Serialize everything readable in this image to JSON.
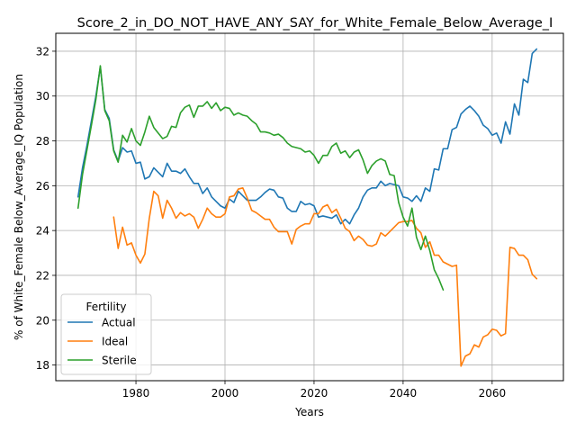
{
  "chart_data": {
    "type": "line",
    "title": "Score_2_in_DO_NOT_HAVE_ANY_SAY_for_White_Female_Below_Average_I",
    "xlabel": "Years",
    "ylabel": "% of White_Female Below_Average_IQ Population",
    "xlim": [
      1962,
      2076
    ],
    "ylim": [
      17.3,
      32.8
    ],
    "xticks": [
      1980,
      2000,
      2020,
      2040,
      2060
    ],
    "yticks": [
      18,
      20,
      22,
      24,
      26,
      28,
      30,
      32
    ],
    "grid": true,
    "legend": {
      "title": "Fertility",
      "placement": "lower-left"
    },
    "series": [
      {
        "name": "Actual",
        "color": "#1f77b4",
        "points": [
          [
            1967,
            25.5
          ],
          [
            1968,
            26.8
          ],
          [
            1969,
            27.8
          ],
          [
            1970,
            28.9
          ],
          [
            1971,
            30.0
          ],
          [
            1972,
            31.3
          ],
          [
            1973,
            29.4
          ],
          [
            1974,
            29.0
          ],
          [
            1975,
            27.6
          ],
          [
            1976,
            27.1
          ],
          [
            1977,
            27.7
          ],
          [
            1978,
            27.5
          ],
          [
            1979,
            27.55
          ],
          [
            1980,
            27.0
          ],
          [
            1981,
            27.05
          ],
          [
            1982,
            26.3
          ],
          [
            1983,
            26.4
          ],
          [
            1984,
            26.8
          ],
          [
            1985,
            26.6
          ],
          [
            1986,
            26.4
          ],
          [
            1987,
            27.0
          ],
          [
            1988,
            26.65
          ],
          [
            1989,
            26.65
          ],
          [
            1990,
            26.55
          ],
          [
            1991,
            26.75
          ],
          [
            1992,
            26.4
          ],
          [
            1993,
            26.1
          ],
          [
            1994,
            26.1
          ],
          [
            1995,
            25.65
          ],
          [
            1996,
            25.9
          ],
          [
            1997,
            25.5
          ],
          [
            1998,
            25.3
          ],
          [
            1999,
            25.1
          ],
          [
            2000,
            25.0
          ],
          [
            2001,
            25.4
          ],
          [
            2002,
            25.25
          ],
          [
            2003,
            25.75
          ],
          [
            2004,
            25.55
          ],
          [
            2005,
            25.35
          ],
          [
            2006,
            25.35
          ],
          [
            2007,
            25.35
          ],
          [
            2008,
            25.5
          ],
          [
            2009,
            25.7
          ],
          [
            2010,
            25.85
          ],
          [
            2011,
            25.8
          ],
          [
            2012,
            25.5
          ],
          [
            2013,
            25.45
          ],
          [
            2014,
            25.0
          ],
          [
            2015,
            24.85
          ],
          [
            2016,
            24.85
          ],
          [
            2017,
            25.3
          ],
          [
            2018,
            25.15
          ],
          [
            2019,
            25.2
          ],
          [
            2020,
            25.1
          ],
          [
            2021,
            24.6
          ],
          [
            2022,
            24.65
          ],
          [
            2023,
            24.6
          ],
          [
            2024,
            24.55
          ],
          [
            2025,
            24.7
          ],
          [
            2026,
            24.3
          ],
          [
            2027,
            24.5
          ],
          [
            2028,
            24.3
          ],
          [
            2029,
            24.7
          ],
          [
            2030,
            25.0
          ],
          [
            2031,
            25.5
          ],
          [
            2032,
            25.8
          ],
          [
            2033,
            25.9
          ],
          [
            2034,
            25.9
          ],
          [
            2035,
            26.2
          ],
          [
            2036,
            26.0
          ],
          [
            2037,
            26.1
          ],
          [
            2038,
            26.05
          ],
          [
            2039,
            26.0
          ],
          [
            2040,
            25.5
          ],
          [
            2041,
            25.45
          ],
          [
            2042,
            25.3
          ],
          [
            2043,
            25.55
          ],
          [
            2044,
            25.3
          ],
          [
            2045,
            25.9
          ],
          [
            2046,
            25.75
          ],
          [
            2047,
            26.75
          ],
          [
            2048,
            26.7
          ],
          [
            2049,
            27.65
          ],
          [
            2050,
            27.65
          ],
          [
            2051,
            28.5
          ],
          [
            2052,
            28.6
          ],
          [
            2053,
            29.2
          ],
          [
            2054,
            29.4
          ],
          [
            2055,
            29.55
          ],
          [
            2056,
            29.35
          ],
          [
            2057,
            29.1
          ],
          [
            2058,
            28.7
          ],
          [
            2059,
            28.55
          ],
          [
            2060,
            28.25
          ],
          [
            2061,
            28.35
          ],
          [
            2062,
            27.9
          ],
          [
            2063,
            28.85
          ],
          [
            2064,
            28.3
          ],
          [
            2065,
            29.65
          ],
          [
            2066,
            29.15
          ],
          [
            2067,
            30.75
          ],
          [
            2068,
            30.6
          ],
          [
            2069,
            31.9
          ],
          [
            2070,
            32.1
          ]
        ]
      },
      {
        "name": "Ideal",
        "color": "#ff7f0e",
        "points": [
          [
            1975,
            24.6
          ],
          [
            1976,
            23.2
          ],
          [
            1977,
            24.15
          ],
          [
            1978,
            23.35
          ],
          [
            1979,
            23.45
          ],
          [
            1980,
            22.9
          ],
          [
            1981,
            22.55
          ],
          [
            1982,
            22.95
          ],
          [
            1983,
            24.55
          ],
          [
            1984,
            25.75
          ],
          [
            1985,
            25.55
          ],
          [
            1986,
            24.55
          ],
          [
            1987,
            25.35
          ],
          [
            1988,
            25.0
          ],
          [
            1989,
            24.55
          ],
          [
            1990,
            24.8
          ],
          [
            1991,
            24.65
          ],
          [
            1992,
            24.75
          ],
          [
            1993,
            24.6
          ],
          [
            1994,
            24.1
          ],
          [
            1995,
            24.5
          ],
          [
            1996,
            25.0
          ],
          [
            1997,
            24.75
          ],
          [
            1998,
            24.6
          ],
          [
            1999,
            24.6
          ],
          [
            2000,
            24.75
          ],
          [
            2001,
            25.5
          ],
          [
            2002,
            25.55
          ],
          [
            2003,
            25.85
          ],
          [
            2004,
            25.9
          ],
          [
            2005,
            25.45
          ],
          [
            2006,
            24.9
          ],
          [
            2007,
            24.8
          ],
          [
            2008,
            24.65
          ],
          [
            2009,
            24.5
          ],
          [
            2010,
            24.5
          ],
          [
            2011,
            24.15
          ],
          [
            2012,
            23.95
          ],
          [
            2013,
            23.95
          ],
          [
            2014,
            23.95
          ],
          [
            2015,
            23.4
          ],
          [
            2016,
            24.05
          ],
          [
            2017,
            24.2
          ],
          [
            2018,
            24.3
          ],
          [
            2019,
            24.3
          ],
          [
            2020,
            24.75
          ],
          [
            2021,
            24.75
          ],
          [
            2022,
            25.05
          ],
          [
            2023,
            25.15
          ],
          [
            2024,
            24.8
          ],
          [
            2025,
            24.95
          ],
          [
            2026,
            24.55
          ],
          [
            2027,
            24.1
          ],
          [
            2028,
            23.95
          ],
          [
            2029,
            23.55
          ],
          [
            2030,
            23.75
          ],
          [
            2031,
            23.6
          ],
          [
            2032,
            23.35
          ],
          [
            2033,
            23.3
          ],
          [
            2034,
            23.4
          ],
          [
            2035,
            23.9
          ],
          [
            2036,
            23.75
          ],
          [
            2037,
            23.95
          ],
          [
            2038,
            24.15
          ],
          [
            2039,
            24.35
          ],
          [
            2040,
            24.4
          ],
          [
            2041,
            24.4
          ],
          [
            2042,
            24.45
          ],
          [
            2043,
            24.1
          ],
          [
            2044,
            23.9
          ],
          [
            2045,
            23.25
          ],
          [
            2046,
            23.5
          ],
          [
            2047,
            22.9
          ],
          [
            2048,
            22.9
          ],
          [
            2049,
            22.6
          ],
          [
            2050,
            22.5
          ],
          [
            2051,
            22.4
          ],
          [
            2052,
            22.45
          ],
          [
            2053,
            17.95
          ],
          [
            2054,
            18.4
          ],
          [
            2055,
            18.5
          ],
          [
            2056,
            18.9
          ],
          [
            2057,
            18.8
          ],
          [
            2058,
            19.25
          ],
          [
            2059,
            19.35
          ],
          [
            2060,
            19.6
          ],
          [
            2061,
            19.55
          ],
          [
            2062,
            19.3
          ],
          [
            2063,
            19.4
          ],
          [
            2064,
            23.25
          ],
          [
            2065,
            23.2
          ],
          [
            2066,
            22.9
          ],
          [
            2067,
            22.9
          ],
          [
            2068,
            22.7
          ],
          [
            2069,
            22.05
          ],
          [
            2070,
            21.85
          ]
        ]
      },
      {
        "name": "Sterile",
        "color": "#2ca02c",
        "points": [
          [
            1967,
            25.0
          ],
          [
            1968,
            26.5
          ],
          [
            1969,
            27.6
          ],
          [
            1970,
            28.7
          ],
          [
            1971,
            29.85
          ],
          [
            1972,
            31.35
          ],
          [
            1973,
            29.35
          ],
          [
            1974,
            28.9
          ],
          [
            1975,
            27.55
          ],
          [
            1976,
            27.05
          ],
          [
            1977,
            28.25
          ],
          [
            1978,
            27.95
          ],
          [
            1979,
            28.55
          ],
          [
            1980,
            28.0
          ],
          [
            1981,
            27.8
          ],
          [
            1982,
            28.4
          ],
          [
            1983,
            29.1
          ],
          [
            1984,
            28.6
          ],
          [
            1985,
            28.35
          ],
          [
            1986,
            28.1
          ],
          [
            1987,
            28.2
          ],
          [
            1988,
            28.65
          ],
          [
            1989,
            28.6
          ],
          [
            1990,
            29.25
          ],
          [
            1991,
            29.5
          ],
          [
            1992,
            29.6
          ],
          [
            1993,
            29.05
          ],
          [
            1994,
            29.55
          ],
          [
            1995,
            29.55
          ],
          [
            1996,
            29.75
          ],
          [
            1997,
            29.45
          ],
          [
            1998,
            29.7
          ],
          [
            1999,
            29.35
          ],
          [
            2000,
            29.5
          ],
          [
            2001,
            29.45
          ],
          [
            2002,
            29.15
          ],
          [
            2003,
            29.25
          ],
          [
            2004,
            29.15
          ],
          [
            2005,
            29.1
          ],
          [
            2006,
            28.9
          ],
          [
            2007,
            28.75
          ],
          [
            2008,
            28.4
          ],
          [
            2009,
            28.4
          ],
          [
            2010,
            28.35
          ],
          [
            2011,
            28.25
          ],
          [
            2012,
            28.3
          ],
          [
            2013,
            28.15
          ],
          [
            2014,
            27.9
          ],
          [
            2015,
            27.75
          ],
          [
            2016,
            27.7
          ],
          [
            2017,
            27.65
          ],
          [
            2018,
            27.5
          ],
          [
            2019,
            27.55
          ],
          [
            2020,
            27.35
          ],
          [
            2021,
            27.0
          ],
          [
            2022,
            27.35
          ],
          [
            2023,
            27.35
          ],
          [
            2024,
            27.75
          ],
          [
            2025,
            27.9
          ],
          [
            2026,
            27.45
          ],
          [
            2027,
            27.55
          ],
          [
            2028,
            27.25
          ],
          [
            2029,
            27.5
          ],
          [
            2030,
            27.6
          ],
          [
            2031,
            27.15
          ],
          [
            2032,
            26.55
          ],
          [
            2033,
            26.9
          ],
          [
            2034,
            27.1
          ],
          [
            2035,
            27.2
          ],
          [
            2036,
            27.1
          ],
          [
            2037,
            26.5
          ],
          [
            2038,
            26.45
          ],
          [
            2039,
            25.25
          ],
          [
            2040,
            24.6
          ],
          [
            2041,
            24.2
          ],
          [
            2042,
            25.0
          ],
          [
            2043,
            23.7
          ],
          [
            2044,
            23.15
          ],
          [
            2045,
            23.75
          ],
          [
            2046,
            23.1
          ],
          [
            2047,
            22.25
          ],
          [
            2048,
            21.85
          ],
          [
            2049,
            21.35
          ]
        ]
      }
    ]
  }
}
